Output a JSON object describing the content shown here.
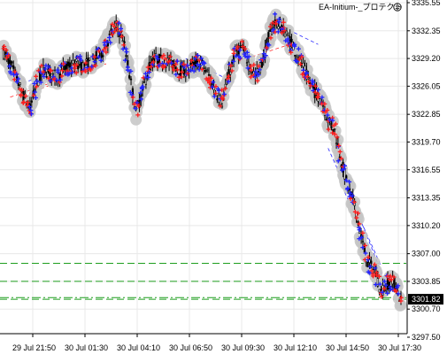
{
  "chart_data": {
    "type": "candlestick",
    "indicator_label": "EA-Initium-_プロテクト",
    "indicator_icon": "smiley-face-icon",
    "price_axis": {
      "ticks": [
        "3335.55",
        "3332.35",
        "3329.20",
        "3326.05",
        "3322.85",
        "3319.70",
        "3316.55",
        "3313.35",
        "3310.20",
        "3307.00",
        "3303.85",
        "3300.70",
        "3297.50"
      ],
      "tick_values": [
        3335.55,
        3332.35,
        3329.2,
        3326.05,
        3322.85,
        3319.7,
        3316.55,
        3313.35,
        3310.2,
        3307.0,
        3303.85,
        3300.7,
        3297.5
      ],
      "range": [
        3297.0,
        3335.55
      ],
      "current_price": "3301.82",
      "current_price_bg": "#000000"
    },
    "time_axis": {
      "labels": [
        "29 Jul 21:50",
        "30 Jul 01:30",
        "30 Jul 04:10",
        "30 Jul 06:50",
        "30 Jul 09:30",
        "30 Jul 12:10",
        "30 Jul 14:50",
        "30 Jul 17:30"
      ]
    },
    "grid": true,
    "price_path": [
      [
        0,
        3329.9
      ],
      [
        4,
        3328.7
      ],
      [
        8,
        3326.9
      ],
      [
        12,
        3324.9
      ],
      [
        16,
        3323.5
      ],
      [
        20,
        3326.3
      ],
      [
        24,
        3327.9
      ],
      [
        28,
        3327.6
      ],
      [
        32,
        3327.0
      ],
      [
        36,
        3327.9
      ],
      [
        40,
        3328.4
      ],
      [
        44,
        3328.5
      ],
      [
        48,
        3328.4
      ],
      [
        52,
        3328.7
      ],
      [
        56,
        3329.3
      ],
      [
        60,
        3330.0
      ],
      [
        64,
        3331.6
      ],
      [
        68,
        3332.9
      ],
      [
        72,
        3331.6
      ],
      [
        76,
        3327.4
      ],
      [
        80,
        3323.1
      ],
      [
        84,
        3325.5
      ],
      [
        88,
        3328.3
      ],
      [
        92,
        3329.2
      ],
      [
        96,
        3328.9
      ],
      [
        100,
        3328.8
      ],
      [
        104,
        3328.3
      ],
      [
        108,
        3327.7
      ],
      [
        112,
        3328.0
      ],
      [
        116,
        3328.7
      ],
      [
        120,
        3328.5
      ],
      [
        124,
        3327.2
      ],
      [
        128,
        3325.4
      ],
      [
        132,
        3324.2
      ],
      [
        136,
        3327.3
      ],
      [
        140,
        3329.9
      ],
      [
        144,
        3330.3
      ],
      [
        148,
        3328.7
      ],
      [
        152,
        3327.2
      ],
      [
        156,
        3328.6
      ],
      [
        160,
        3331.5
      ],
      [
        164,
        3333.4
      ],
      [
        168,
        3332.7
      ],
      [
        172,
        3331.6
      ],
      [
        176,
        3330.1
      ],
      [
        180,
        3328.6
      ],
      [
        184,
        3326.8
      ],
      [
        188,
        3325.4
      ],
      [
        192,
        3324.5
      ],
      [
        196,
        3322.2
      ],
      [
        200,
        3321.0
      ],
      [
        204,
        3317.5
      ],
      [
        208,
        3314.5
      ],
      [
        212,
        3312.6
      ],
      [
        216,
        3308.8
      ],
      [
        220,
        3305.9
      ],
      [
        224,
        3305.2
      ],
      [
        228,
        3302.7
      ],
      [
        232,
        3303.6
      ],
      [
        236,
        3303.7
      ],
      [
        240,
        3301.6
      ]
    ],
    "horizontal_levels": [
      {
        "price": 3305.9,
        "style": "dashed",
        "color": "#1f9e1f"
      },
      {
        "price": 3303.85,
        "style": "dashed",
        "color": "#1f9e1f"
      },
      {
        "price": 3302.0,
        "style": "dashdot",
        "color": "#1f9e1f"
      },
      {
        "price": 3301.82,
        "style": "dashed",
        "color": "#1f9e1f"
      }
    ],
    "colors": {
      "candle": "#000000",
      "buy_marker": "#2222ff",
      "sell_marker": "#ff1f1f",
      "trail_halo": "#c4c4c4",
      "trend_blue": "#2a2aff",
      "trend_red": "#ff2a2a",
      "grid": "#e8e8e8",
      "level": "#1f9e1f"
    }
  }
}
